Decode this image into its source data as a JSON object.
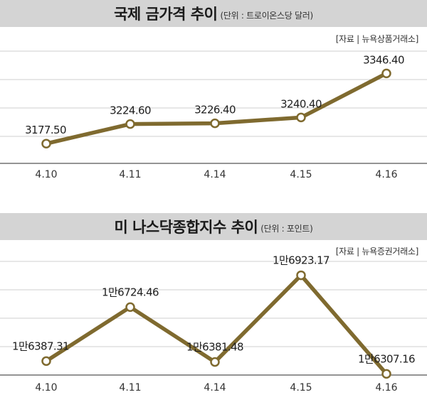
{
  "chart_data": [
    {
      "type": "line",
      "title": "국제 금가격 추이",
      "unit": "(단위 : 트로이온스당 달러)",
      "source": "[자료 | 뉴욕상품거래소]",
      "categories": [
        "4.10",
        "4.11",
        "4.14",
        "4.15",
        "4.16"
      ],
      "series": [
        {
          "values": [
            3177.5,
            3224.6,
            3226.4,
            3240.4,
            3346.4
          ]
        }
      ],
      "data_labels": [
        "3177.50",
        "3224.60",
        "3226.40",
        "3240.40",
        "3346.40"
      ],
      "ylim": [
        3130,
        3400
      ],
      "grid": true,
      "line_color": "#7f6a2f"
    },
    {
      "type": "line",
      "title": "미 나스닥종합지수 추이",
      "unit": "(단위 : 포인트)",
      "source": "[자료 | 뉴욕증권거래소]",
      "categories": [
        "4.10",
        "4.11",
        "4.14",
        "4.15",
        "4.16"
      ],
      "series": [
        {
          "values": [
            16387.31,
            16724.46,
            16381.48,
            16923.17,
            16307.16
          ]
        }
      ],
      "data_labels": [
        "1만6387.31",
        "1만6724.46",
        "1만6381.48",
        "1만6923.17",
        "1만6307.16"
      ],
      "ylim": [
        16300,
        17010
      ],
      "grid": true,
      "line_color": "#7f6a2f"
    }
  ]
}
